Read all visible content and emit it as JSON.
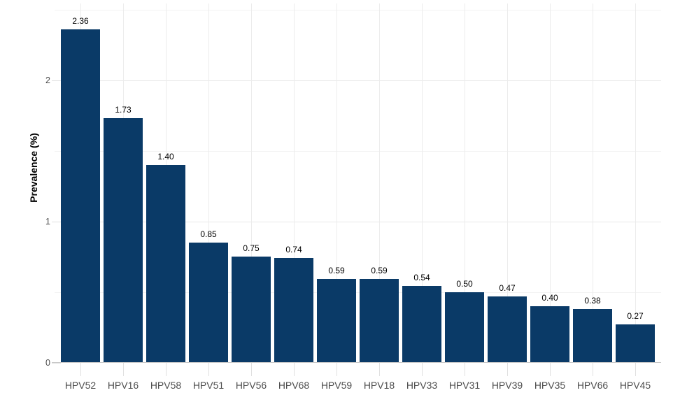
{
  "chart_data": {
    "type": "bar",
    "title": "",
    "categories": [
      "HPV52",
      "HPV16",
      "HPV58",
      "HPV51",
      "HPV56",
      "HPV68",
      "HPV59",
      "HPV18",
      "HPV33",
      "HPV31",
      "HPV39",
      "HPV35",
      "HPV66",
      "HPV45"
    ],
    "values": [
      2.36,
      1.73,
      1.4,
      0.85,
      0.75,
      0.74,
      0.59,
      0.59,
      0.54,
      0.5,
      0.47,
      0.4,
      0.38,
      0.27
    ],
    "value_labels": [
      "2.36",
      "1.73",
      "1.40",
      "0.85",
      "0.75",
      "0.74",
      "0.59",
      "0.59",
      "0.54",
      "0.50",
      "0.47",
      "0.40",
      "0.38",
      "0.27"
    ],
    "xlabel": "",
    "ylabel": "Prevalence (%)",
    "ylim": [
      0,
      2.54
    ],
    "yticks": [
      0,
      1,
      2
    ],
    "ytick_labels": [
      "0",
      "1",
      "2"
    ],
    "yticks_minor": [
      0.5,
      1.5,
      2.5
    ],
    "grid": "on",
    "legend": "none"
  },
  "colors": {
    "bar": "#0a3a67",
    "grid_major": "#e8e8e8",
    "grid_minor": "#f3f3f3",
    "grid_vertical": "#ececec",
    "axis_line": "#c9c9c9",
    "tick_mark": "#e0e0e0",
    "axis_text": "#4d4d4d",
    "value_text": "#000000",
    "background": "#ffffff"
  }
}
